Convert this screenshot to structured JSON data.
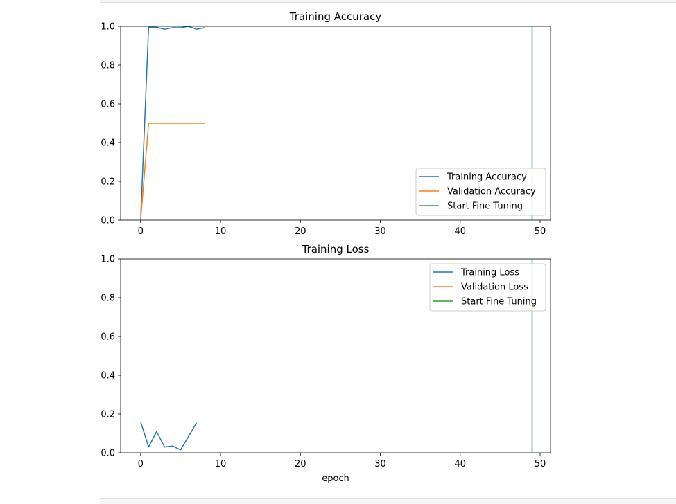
{
  "chart_data": [
    {
      "type": "line",
      "title": "Training Accuracy",
      "xlabel": "",
      "ylabel": "",
      "xlim": [
        -2.5,
        51.3
      ],
      "ylim": [
        0,
        1.0
      ],
      "xticks": [
        0,
        10,
        20,
        30,
        40,
        50
      ],
      "yticks": [
        0.0,
        0.2,
        0.4,
        0.6,
        0.8,
        1.0
      ],
      "grid": false,
      "legend_position": "lower-right",
      "series": [
        {
          "name": "Training Accuracy",
          "color": "#1f77b4",
          "x": [
            0,
            1,
            2,
            3,
            4,
            5,
            6,
            7,
            8
          ],
          "y": [
            0.0,
            0.995,
            0.995,
            0.985,
            0.993,
            0.993,
            1.0,
            0.985,
            0.993
          ]
        },
        {
          "name": "Validation Accuracy",
          "color": "#ff7f0e",
          "x": [
            0,
            1,
            2,
            3,
            4,
            5,
            6,
            7,
            8
          ],
          "y": [
            0.0,
            0.5,
            0.5,
            0.5,
            0.5,
            0.5,
            0.5,
            0.5,
            0.5
          ]
        },
        {
          "name": "Start Fine Tuning",
          "color": "#2ca02c",
          "vline_x": 49
        }
      ]
    },
    {
      "type": "line",
      "title": "Training Loss",
      "xlabel": "epoch",
      "ylabel": "",
      "xlim": [
        -2.5,
        51.3
      ],
      "ylim": [
        0,
        1.0
      ],
      "xticks": [
        0,
        10,
        20,
        30,
        40,
        50
      ],
      "yticks": [
        0.0,
        0.2,
        0.4,
        0.6,
        0.8,
        1.0
      ],
      "grid": false,
      "legend_position": "upper-right",
      "series": [
        {
          "name": "Training Loss",
          "color": "#1f77b4",
          "x": [
            0,
            1,
            2,
            3,
            4,
            5,
            6,
            7
          ],
          "y": [
            0.16,
            0.03,
            0.11,
            0.03,
            0.035,
            0.015,
            0.085,
            0.155
          ]
        },
        {
          "name": "Validation Loss",
          "color": "#ff7f0e",
          "x": [],
          "y": []
        },
        {
          "name": "Start Fine Tuning",
          "color": "#2ca02c",
          "vline_x": 49
        }
      ]
    }
  ]
}
